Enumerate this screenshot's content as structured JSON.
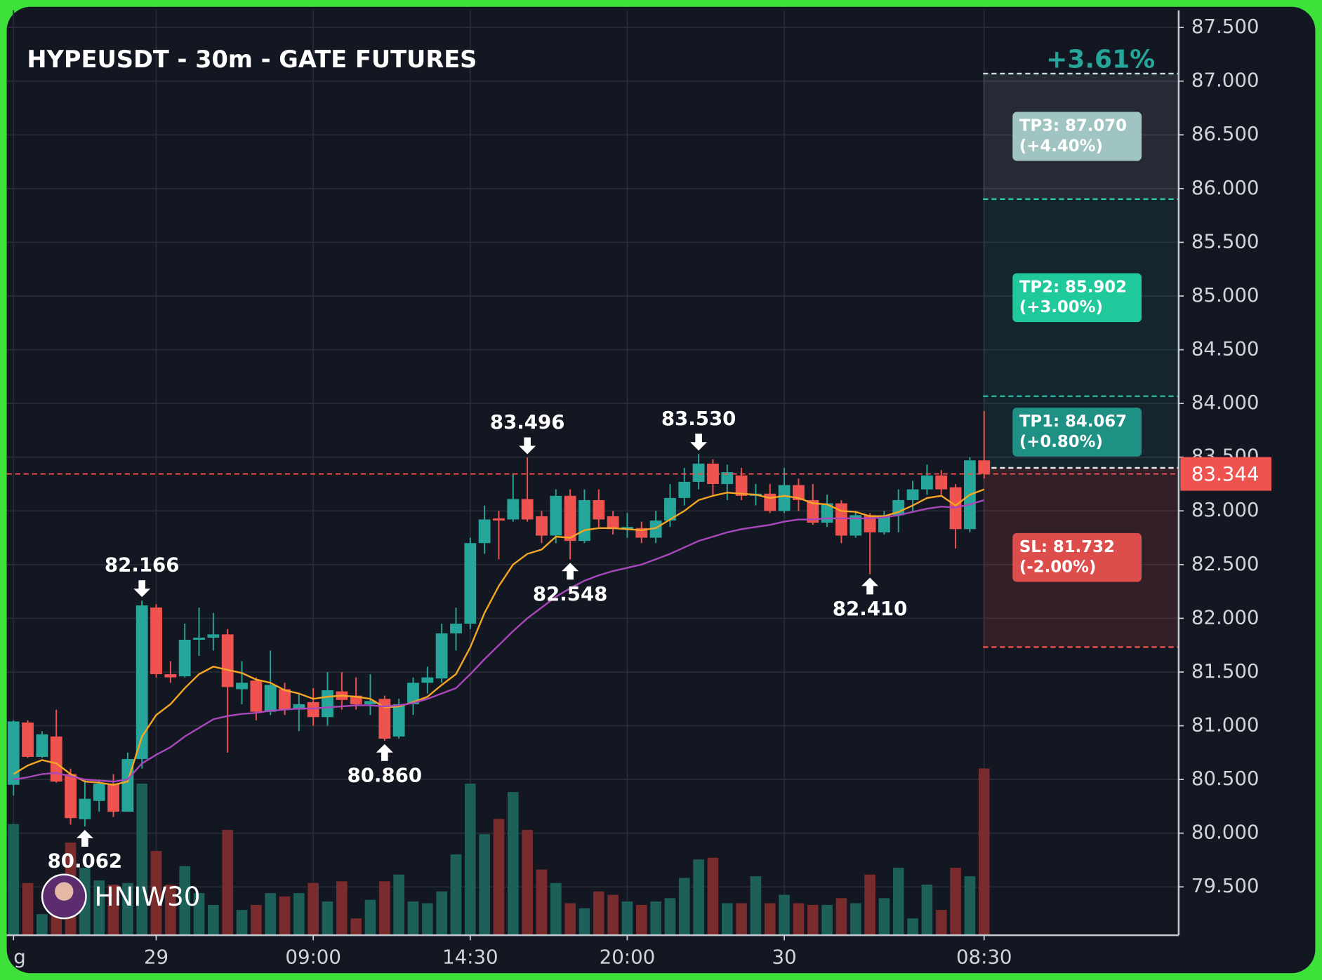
{
  "chart_data": {
    "type": "candlestick",
    "title": "HYPEUSDT - 30m - GATE FUTURES",
    "change": "+3.61%",
    "watermark": "HNIW30",
    "categories": [
      "g",
      null,
      null,
      null,
      null,
      null,
      null,
      null,
      null,
      null,
      "29",
      null,
      null,
      null,
      null,
      null,
      null,
      null,
      null,
      null,
      null,
      "09:00",
      null,
      null,
      null,
      null,
      null,
      null,
      null,
      null,
      null,
      null,
      "14:30",
      null,
      null,
      null,
      null,
      null,
      null,
      null,
      null,
      null,
      null,
      "20:00",
      null,
      null,
      null,
      null,
      null,
      null,
      null,
      null,
      null,
      null,
      "30",
      null,
      null,
      null,
      null,
      null,
      null,
      null,
      null,
      null,
      null,
      null,
      null,
      null,
      "08:30"
    ],
    "open": [
      80.45,
      81.03,
      80.71,
      80.9,
      80.55,
      80.13,
      80.3,
      80.46,
      80.2,
      80.69,
      82.1,
      81.48,
      81.46,
      81.8,
      81.82,
      81.85,
      81.34,
      81.42,
      81.13,
      81.34,
      81.15,
      81.22,
      81.08,
      81.32,
      81.28,
      81.2,
      81.25,
      80.9,
      81.2,
      81.4,
      81.44,
      81.86,
      81.95,
      82.7,
      82.93,
      82.92,
      83.11,
      82.95,
      82.77,
      83.14,
      82.72,
      83.1,
      82.95,
      82.83,
      82.84,
      82.75,
      82.91,
      83.12,
      83.27,
      83.44,
      83.25,
      83.33,
      83.14,
      83.16,
      83.0,
      83.24,
      83.1,
      82.89,
      83.07,
      82.77,
      82.96,
      82.8,
      82.96,
      83.1,
      83.2,
      83.33,
      83.22,
      82.83,
      83.47
    ],
    "high": [
      81.05,
      81.05,
      80.95,
      81.15,
      80.6,
      80.5,
      80.5,
      80.55,
      80.75,
      82.166,
      82.13,
      81.6,
      81.95,
      82.1,
      82.05,
      81.9,
      81.6,
      81.45,
      81.7,
      81.4,
      81.3,
      81.35,
      81.5,
      81.5,
      81.45,
      81.48,
      81.28,
      81.25,
      81.45,
      81.55,
      81.95,
      82.1,
      82.75,
      83.05,
      83.0,
      83.35,
      83.496,
      83.0,
      83.2,
      83.2,
      83.2,
      83.2,
      83.0,
      82.98,
      82.9,
      83.0,
      83.25,
      83.4,
      83.53,
      83.48,
      83.43,
      83.4,
      83.25,
      83.25,
      83.4,
      83.3,
      83.25,
      83.15,
      83.1,
      83.0,
      82.98,
      83.0,
      83.2,
      83.28,
      83.43,
      83.38,
      83.25,
      83.5,
      83.93
    ],
    "low": [
      80.35,
      80.7,
      80.7,
      80.47,
      80.08,
      80.062,
      80.2,
      80.15,
      80.2,
      80.6,
      81.45,
      81.4,
      81.45,
      81.65,
      81.7,
      80.75,
      81.2,
      81.05,
      81.1,
      81.1,
      80.95,
      81.0,
      81.0,
      81.15,
      81.15,
      81.1,
      80.86,
      80.88,
      81.1,
      81.3,
      81.4,
      81.7,
      81.9,
      82.6,
      82.55,
      82.9,
      82.9,
      82.7,
      82.7,
      82.548,
      82.7,
      82.85,
      82.78,
      82.75,
      82.7,
      82.7,
      82.85,
      83.05,
      83.2,
      83.15,
      83.1,
      83.1,
      83.05,
      82.98,
      82.98,
      83.0,
      82.87,
      82.85,
      82.7,
      82.75,
      82.41,
      82.78,
      82.8,
      83.0,
      83.15,
      83.15,
      82.65,
      82.8,
      83.3
    ],
    "close": [
      81.04,
      80.71,
      80.92,
      80.48,
      80.14,
      80.32,
      80.46,
      80.2,
      80.69,
      82.12,
      81.48,
      81.45,
      81.8,
      81.82,
      81.85,
      81.36,
      81.4,
      81.13,
      81.38,
      81.15,
      81.2,
      81.08,
      81.33,
      81.24,
      81.2,
      81.23,
      80.88,
      81.2,
      81.4,
      81.45,
      81.86,
      81.95,
      82.7,
      82.92,
      82.91,
      83.11,
      82.92,
      82.77,
      83.14,
      82.72,
      83.1,
      82.92,
      82.83,
      82.85,
      82.75,
      82.91,
      83.12,
      83.27,
      83.44,
      83.25,
      83.36,
      83.14,
      83.16,
      83.0,
      83.24,
      83.1,
      82.89,
      83.07,
      82.77,
      82.96,
      82.8,
      82.96,
      83.1,
      83.2,
      83.33,
      83.2,
      82.83,
      83.47,
      83.344
    ],
    "volume": [
      132,
      62,
      25,
      62,
      110,
      80,
      65,
      60,
      62,
      180,
      100,
      60,
      82,
      50,
      36,
      125,
      30,
      36,
      50,
      46,
      50,
      62,
      40,
      64,
      20,
      42,
      64,
      72,
      40,
      38,
      52,
      96,
      180,
      120,
      138,
      170,
      125,
      78,
      62,
      38,
      32,
      52,
      48,
      40,
      36,
      40,
      44,
      68,
      90,
      92,
      38,
      38,
      70,
      38,
      48,
      38,
      36,
      36,
      44,
      38,
      72,
      44,
      80,
      20,
      60,
      30,
      80,
      70,
      198
    ],
    "up_color": "#26a69a",
    "down_color": "#ef5350",
    "volume_up_color": "#1d5f59",
    "volume_down_color": "#7a2b2b",
    "lines": [
      {
        "color": "#f5a623",
        "values": [
          80.55,
          80.63,
          80.68,
          80.65,
          80.55,
          80.48,
          80.47,
          80.45,
          80.48,
          80.9,
          81.1,
          81.2,
          81.35,
          81.48,
          81.55,
          81.52,
          81.49,
          81.43,
          81.4,
          81.33,
          81.3,
          81.25,
          81.27,
          81.28,
          81.27,
          81.25,
          81.17,
          81.18,
          81.22,
          81.27,
          81.38,
          81.48,
          81.73,
          82.05,
          82.3,
          82.5,
          82.6,
          82.64,
          82.76,
          82.75,
          82.82,
          82.84,
          82.84,
          82.83,
          82.82,
          82.84,
          82.92,
          83.0,
          83.1,
          83.14,
          83.17,
          83.16,
          83.15,
          83.12,
          83.14,
          83.12,
          83.07,
          83.06,
          83.0,
          82.99,
          82.95,
          82.95,
          82.99,
          83.05,
          83.12,
          83.14,
          83.05,
          83.15,
          83.2
        ]
      },
      {
        "color": "#ab47bc",
        "values": [
          80.5,
          80.52,
          80.55,
          80.56,
          80.53,
          80.5,
          80.49,
          80.48,
          80.5,
          80.65,
          80.73,
          80.8,
          80.9,
          80.98,
          81.06,
          81.09,
          81.11,
          81.12,
          81.14,
          81.15,
          81.16,
          81.16,
          81.17,
          81.18,
          81.19,
          81.19,
          81.18,
          81.19,
          81.21,
          81.25,
          81.3,
          81.35,
          81.48,
          81.62,
          81.75,
          81.88,
          82.0,
          82.1,
          82.2,
          82.28,
          82.35,
          82.4,
          82.44,
          82.47,
          82.5,
          82.55,
          82.6,
          82.66,
          82.72,
          82.76,
          82.8,
          82.83,
          82.85,
          82.87,
          82.9,
          82.92,
          82.92,
          82.93,
          82.93,
          82.93,
          82.93,
          82.94,
          82.96,
          82.99,
          83.02,
          83.04,
          83.03,
          83.06,
          83.1
        ]
      }
    ],
    "annotations": [
      {
        "candle": 5,
        "side": "low",
        "label": "80.062"
      },
      {
        "candle": 9,
        "side": "high",
        "label": "82.166"
      },
      {
        "candle": 26,
        "side": "low",
        "label": "80.860"
      },
      {
        "candle": 36,
        "side": "high",
        "label": "83.496"
      },
      {
        "candle": 39,
        "side": "low",
        "label": "82.548"
      },
      {
        "candle": 48,
        "side": "high",
        "label": "83.530"
      },
      {
        "candle": 60,
        "side": "low",
        "label": "82.410"
      }
    ],
    "entry": 83.4,
    "entry_color": "#e8e8e8",
    "levels": [
      {
        "label": "TP3: 87.070",
        "pct": "(+4.40%)",
        "value": 87.07,
        "color": "#9fc4c1",
        "line": "#c9dede",
        "zone": "rgba(210,220,230,0.10)"
      },
      {
        "label": "TP2: 85.902",
        "pct": "(+3.00%)",
        "value": 85.902,
        "color": "#1fc99b",
        "line": "#2bc9a6",
        "zone": "rgba(38,166,154,0.10)"
      },
      {
        "label": "TP1: 84.067",
        "pct": "(+0.80%)",
        "value": 84.067,
        "color": "#1f9084",
        "line": "#2bb3a0",
        "zone": "rgba(38,166,154,0.10)"
      },
      {
        "label": "SL: 81.732",
        "pct": "(-2.00%)",
        "value": 81.732,
        "color": "#dc4d4b",
        "line": "#ef5350",
        "zone": "rgba(239,83,80,0.14)"
      }
    ],
    "current_price": {
      "value": 83.344,
      "label": "83.344",
      "color": "#ef5350"
    },
    "ylim": [
      79.05,
      87.66
    ],
    "yticks": [
      {
        "value": 79.5,
        "label": "79.500"
      },
      {
        "value": 80,
        "label": "80.000"
      },
      {
        "value": 80.5,
        "label": "80.500"
      },
      {
        "value": 81,
        "label": "81.000"
      },
      {
        "value": 81.5,
        "label": "81.500"
      },
      {
        "value": 82,
        "label": "82.000"
      },
      {
        "value": 82.5,
        "label": "82.500"
      },
      {
        "value": 83,
        "label": "83.000"
      },
      {
        "value": 83.5,
        "label": "83.500"
      },
      {
        "value": 84,
        "label": "84.000"
      },
      {
        "value": 84.5,
        "label": "84.500"
      },
      {
        "value": 85,
        "label": "85.000"
      },
      {
        "value": 85.5,
        "label": "85.500"
      },
      {
        "value": 86,
        "label": "86.000"
      },
      {
        "value": 86.5,
        "label": "86.500"
      },
      {
        "value": 87,
        "label": "87.000"
      },
      {
        "value": 87.5,
        "label": "87.500"
      }
    ],
    "grid": true
  }
}
